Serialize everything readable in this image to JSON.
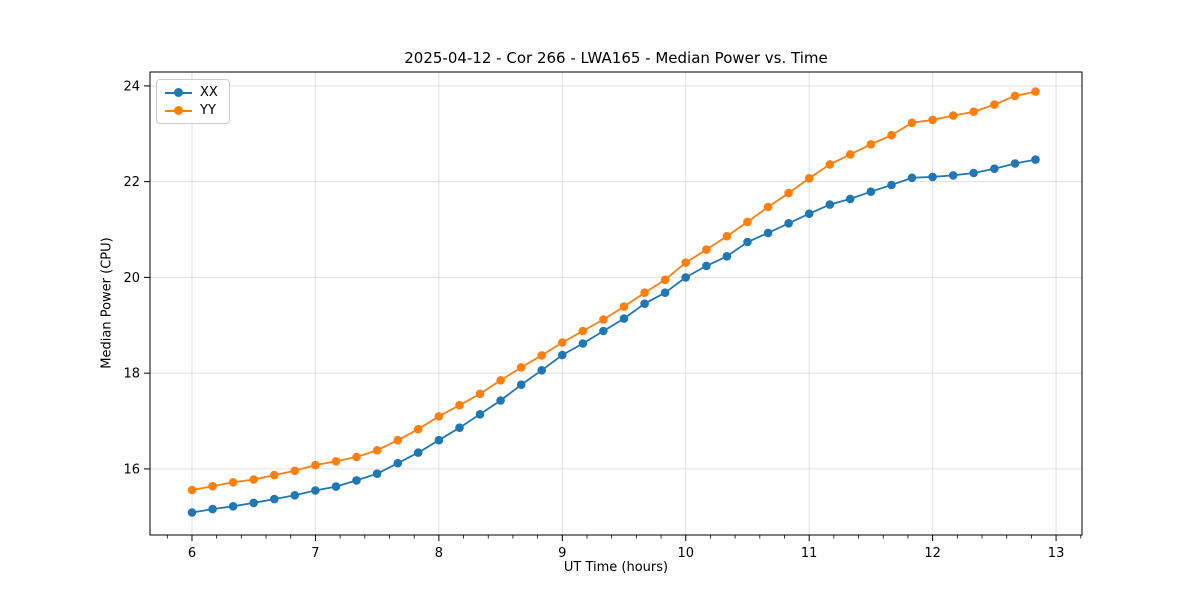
{
  "title": "2025-04-12 - Cor 266 - LWA165 - Median Power vs. Time",
  "colors": {
    "series_xx": "#1f77b4",
    "series_yy": "#ff7f0e",
    "grid": "#e0e0e0",
    "spine": "#000000",
    "tick_label": "#000000",
    "background": "#ffffff",
    "legend_border": "#cccccc"
  },
  "legend": {
    "position": "upper left",
    "items": [
      {
        "label": "XX",
        "color": "#1f77b4"
      },
      {
        "label": "YY",
        "color": "#ff7f0e"
      }
    ]
  },
  "chart_data": {
    "type": "line",
    "title": "2025-04-12 - Cor 266 - LWA165 - Median Power vs. Time",
    "xlabel": "UT Time (hours)",
    "ylabel": "Median Power (CPU)",
    "xlim": [
      5.66,
      13.21
    ],
    "ylim": [
      14.62,
      24.29
    ],
    "x_ticks": [
      6,
      7,
      8,
      9,
      10,
      11,
      12,
      13
    ],
    "y_ticks": [
      16,
      18,
      20,
      22,
      24
    ],
    "x_minor_tick_step": 0.2,
    "grid": true,
    "legend_position": "upper left",
    "marker": "circle",
    "x": [
      6.0,
      6.167,
      6.333,
      6.5,
      6.667,
      6.833,
      7.0,
      7.167,
      7.333,
      7.5,
      7.667,
      7.833,
      8.0,
      8.167,
      8.333,
      8.5,
      8.667,
      8.833,
      9.0,
      9.167,
      9.333,
      9.5,
      9.667,
      9.833,
      10.0,
      10.167,
      10.333,
      10.5,
      10.667,
      10.833,
      11.0,
      11.167,
      11.333,
      11.5,
      11.667,
      11.833,
      12.0,
      12.167,
      12.333,
      12.5,
      12.667,
      12.833
    ],
    "series": [
      {
        "name": "XX",
        "color": "#1f77b4",
        "values": [
          15.09,
          15.16,
          15.22,
          15.29,
          15.37,
          15.45,
          15.55,
          15.63,
          15.76,
          15.9,
          16.12,
          16.34,
          16.6,
          16.86,
          17.14,
          17.43,
          17.76,
          18.06,
          18.38,
          18.62,
          18.88,
          19.14,
          19.45,
          19.68,
          20.0,
          20.24,
          20.44,
          20.74,
          20.93,
          21.13,
          21.33,
          21.52,
          21.64,
          21.79,
          21.93,
          22.08,
          22.1,
          22.13,
          22.18,
          22.27,
          22.38,
          22.46
        ]
      },
      {
        "name": "YY",
        "color": "#ff7f0e",
        "values": [
          15.56,
          15.64,
          15.72,
          15.78,
          15.87,
          15.96,
          16.08,
          16.16,
          16.25,
          16.39,
          16.6,
          16.83,
          17.1,
          17.33,
          17.57,
          17.85,
          18.12,
          18.37,
          18.64,
          18.88,
          19.12,
          19.39,
          19.68,
          19.95,
          20.31,
          20.58,
          20.86,
          21.16,
          21.47,
          21.76,
          22.07,
          22.36,
          22.57,
          22.78,
          22.97,
          23.23,
          23.29,
          23.38,
          23.46,
          23.61,
          23.79,
          23.88
        ]
      }
    ]
  }
}
